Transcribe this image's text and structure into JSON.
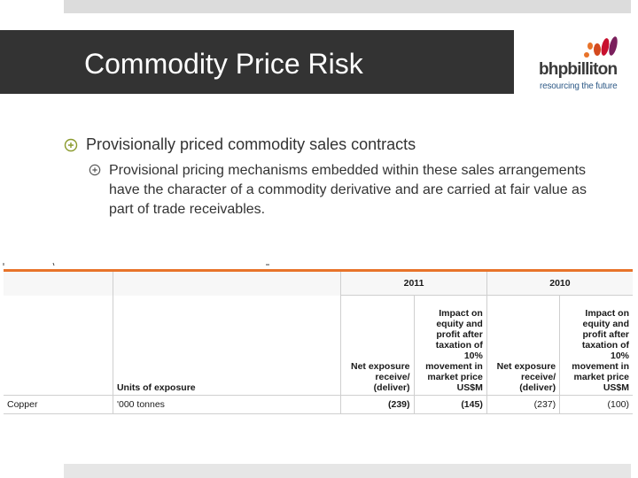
{
  "slide": {
    "title": "Commodity Price Risk",
    "bullets": [
      {
        "text": "Provisionally priced commodity sales contracts"
      },
      {
        "text": "Provisional pricing mechanisms embedded within these sales arrangements have the character of a commodity derivative and are carried at fair value as part of trade receivables."
      }
    ]
  },
  "logo": {
    "wordmark": "bhpbilliton",
    "tagline": "resourcing the future",
    "colors": [
      "#e8732a",
      "#c8102e",
      "#7a1f5c"
    ]
  },
  "table": {
    "years": [
      "2011",
      "2010"
    ],
    "headers": {
      "units": "Units of exposure",
      "net_2011": "Net exposure receive/ (deliver)",
      "impact_2011": "Impact on equity and profit after taxation of 10% movement in market price US$M",
      "net_2010": "Net exposure receive/ (deliver)",
      "impact_2010": "Impact on equity and profit after taxation of 10% movement in market price US$M"
    },
    "rows": [
      {
        "item": "Copper",
        "units": "'000 tonnes",
        "net_2011": "(239)",
        "impact_2011": "(145)",
        "net_2010": "(237)",
        "impact_2010": "(100)"
      }
    ],
    "accent": "#e8732a"
  }
}
